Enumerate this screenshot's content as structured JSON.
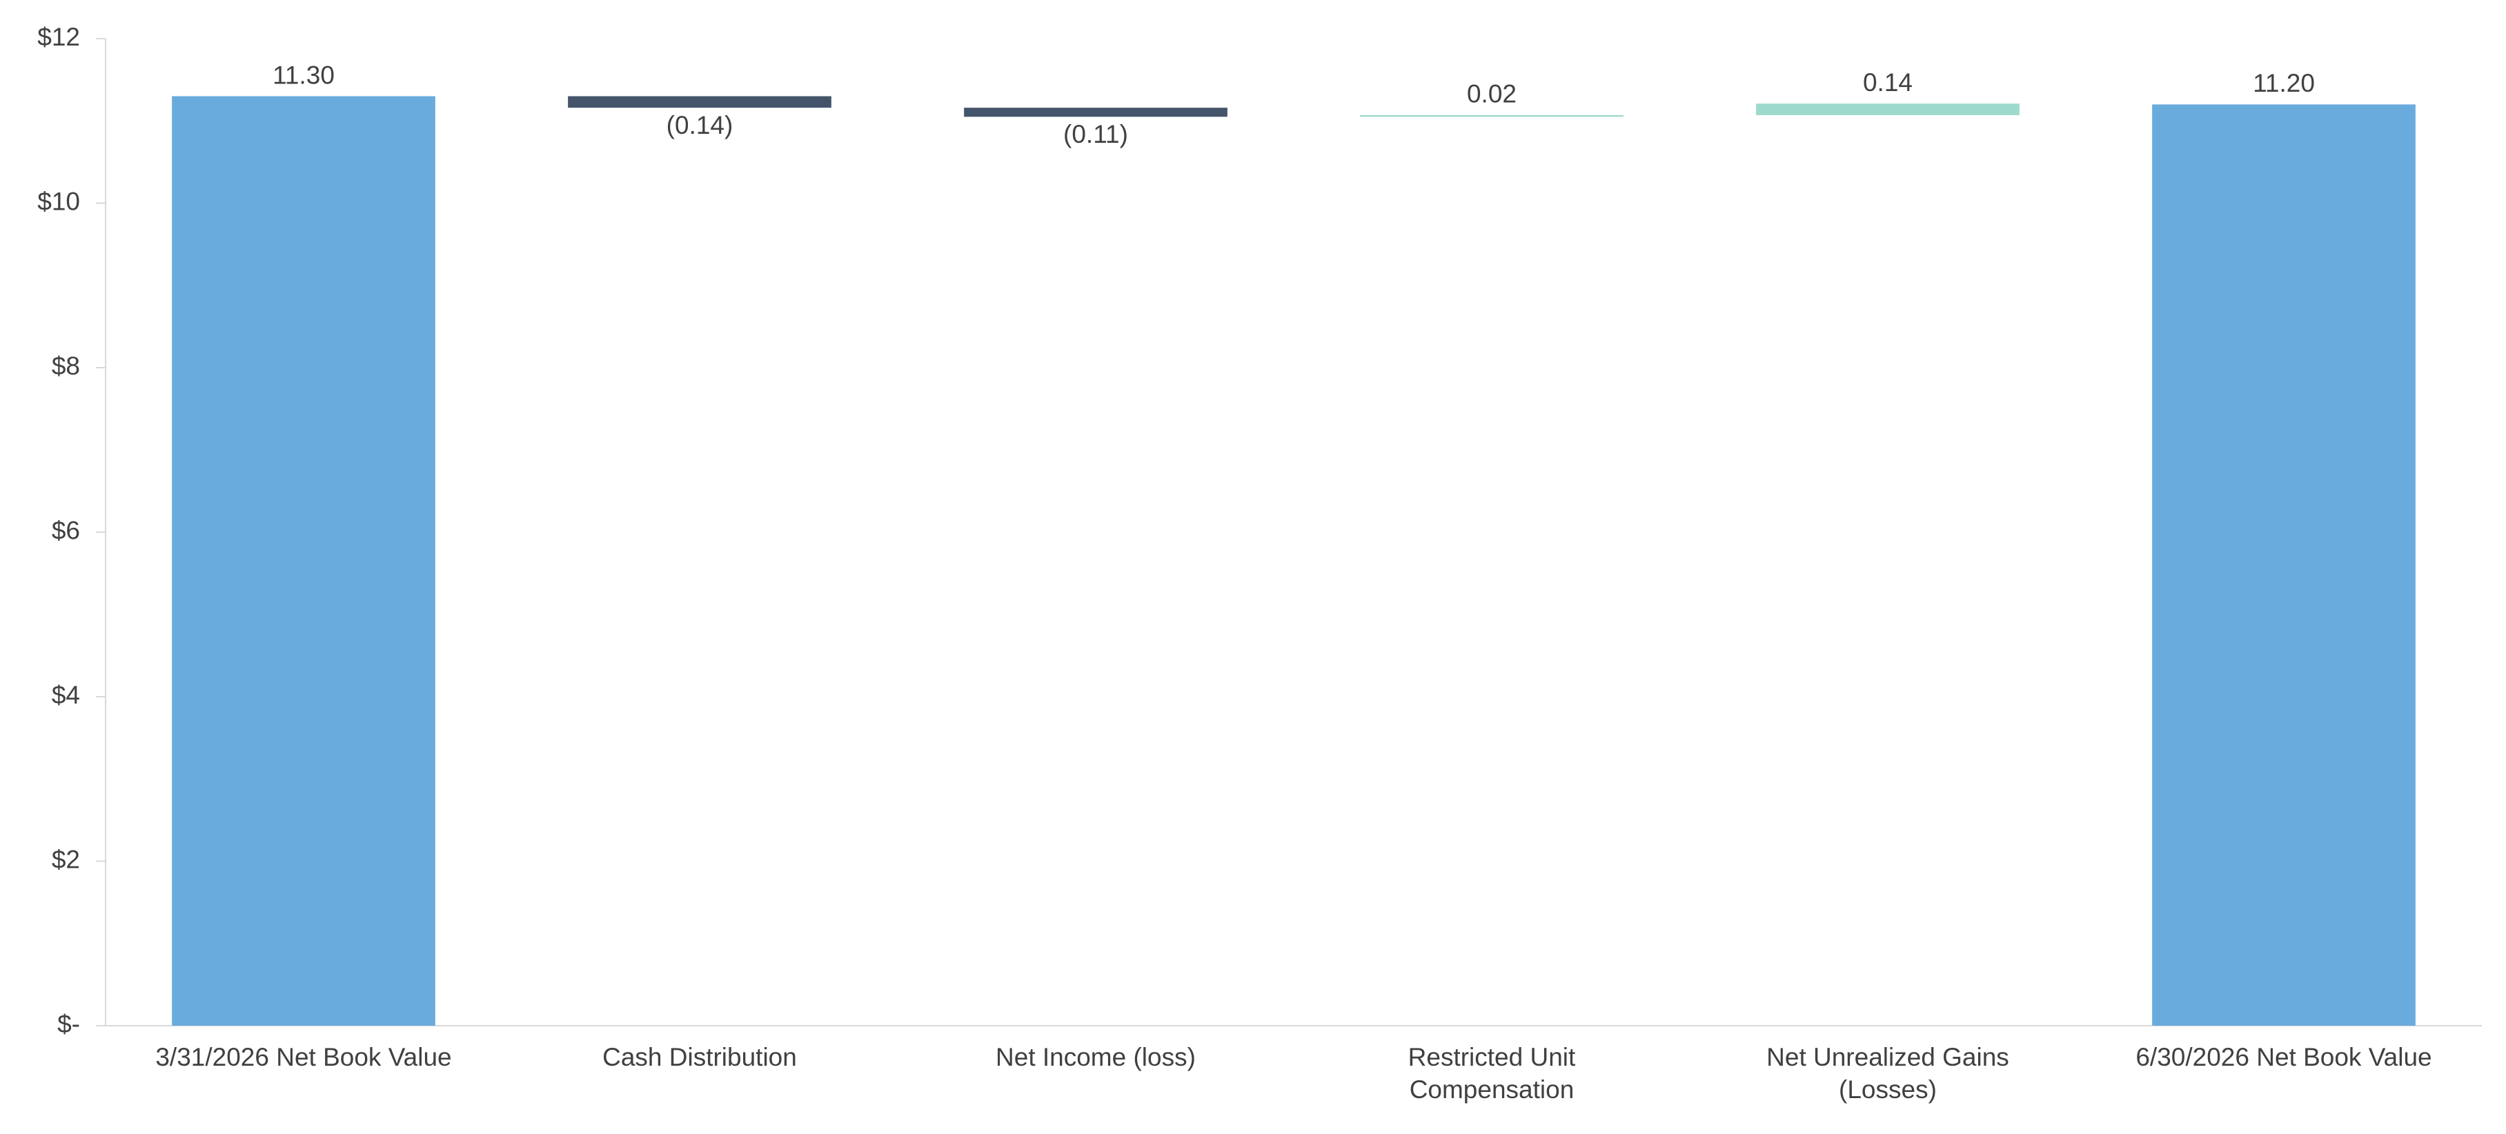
{
  "chart_data": {
    "type": "waterfall",
    "categories": [
      "3/31/2026 Net Book Value",
      "Cash Distribution",
      "Net Income (loss)",
      "Restricted Unit Compensation",
      "Net Unrealized Gains (Losses)",
      "6/30/2026 Net Book Value"
    ],
    "values": [
      11.3,
      -0.14,
      -0.11,
      0.02,
      0.14,
      11.2
    ],
    "value_labels": [
      "11.30",
      "(0.14)",
      "(0.11)",
      "0.02",
      "0.14",
      "11.20"
    ],
    "is_total": [
      true,
      false,
      false,
      false,
      false,
      true
    ],
    "colors": {
      "total": "#6aabdd",
      "decrease": "#44546a",
      "increase": "#9dd9cc"
    },
    "ylim": [
      0,
      12
    ],
    "yticks": [
      {
        "value": 0,
        "label": "$-"
      },
      {
        "value": 2,
        "label": "$2"
      },
      {
        "value": 4,
        "label": "$4"
      },
      {
        "value": 6,
        "label": "$6"
      },
      {
        "value": 8,
        "label": "$8"
      },
      {
        "value": 10,
        "label": "$10"
      },
      {
        "value": 12,
        "label": "$12"
      }
    ],
    "grid": false
  }
}
